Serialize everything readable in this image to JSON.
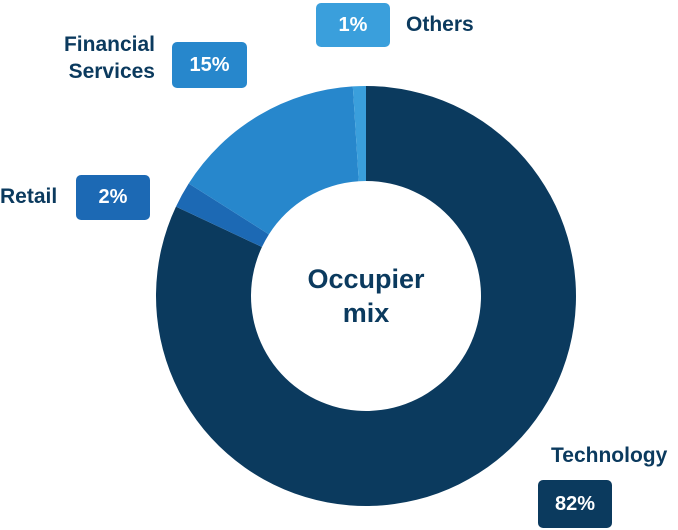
{
  "chart_data": {
    "type": "donut",
    "title": "Occupier mix",
    "categories": [
      "Technology",
      "Retail",
      "Financial Services",
      "Others"
    ],
    "values": [
      82,
      2,
      15,
      1
    ],
    "value_labels": [
      "82%",
      "2%",
      "15%",
      "1%"
    ],
    "colors": [
      "#0b3a5e",
      "#1c69b4",
      "#2787cc",
      "#3a9fdc"
    ]
  }
}
